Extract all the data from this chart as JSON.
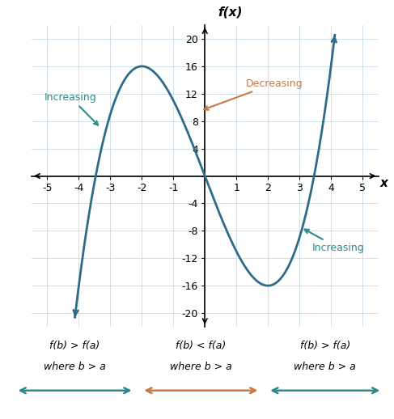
{
  "title": "f(x)",
  "xlabel": "x",
  "xlim": [
    -5.5,
    5.5
  ],
  "ylim": [
    -22,
    22
  ],
  "xticks": [
    -5,
    -4,
    -3,
    -2,
    -1,
    0,
    1,
    2,
    3,
    4,
    5
  ],
  "yticks": [
    -20,
    -16,
    -12,
    -8,
    -4,
    0,
    4,
    8,
    12,
    16,
    20
  ],
  "curve_color": "#2e6b8a",
  "teal_color": "#2e8a8a",
  "orange_color": "#c87941",
  "annotation_increasing_left": "Increasing",
  "annotation_decreasing": "Decreasing",
  "annotation_increasing_right": "Increasing",
  "bottom_left_line1": "f(b) > f(a)",
  "bottom_left_line2": "where b > a",
  "bottom_mid_line1": "f(b) < f(a)",
  "bottom_mid_line2": "where b > a",
  "bottom_right_line1": "f(b) > f(a)",
  "bottom_right_line2": "where b > a"
}
